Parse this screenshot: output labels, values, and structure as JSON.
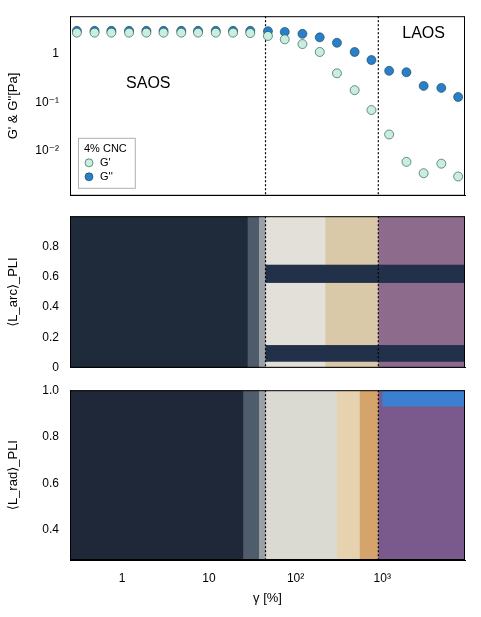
{
  "chart_data": [
    {
      "type": "scatter",
      "y_label": "G' & G''[Pa]",
      "log": true,
      "grid": false,
      "legend": "lower left",
      "legend_title": "4% CNC",
      "tick_labels": "y",
      "xlim": [
        0.25,
        9000
      ],
      "xticks": [
        1,
        10,
        {
          "value": 100,
          "label": "10²"
        },
        {
          "value": 1000,
          "label": "10³"
        }
      ],
      "ylim": [
        0.0012,
        6
      ],
      "yticks": [
        {
          "value": 0.01,
          "label": "10⁻²"
        },
        {
          "value": 0.1,
          "label": "10⁻¹"
        },
        1
      ],
      "x": [
        0.3,
        0.48,
        0.75,
        1.2,
        1.9,
        3,
        4.8,
        7.5,
        12,
        19,
        30,
        48,
        75,
        120,
        190,
        300,
        480,
        750,
        1200,
        1900,
        3000,
        4800,
        7500
      ],
      "series": [
        {
          "name": "G'",
          "color": "#c9eedb",
          "marker": "circle",
          "values": [
            2.75,
            2.75,
            2.75,
            2.75,
            2.75,
            2.75,
            2.75,
            2.75,
            2.75,
            2.75,
            2.7,
            2.35,
            2.0,
            1.6,
            1.1,
            0.4,
            0.18,
            0.07,
            0.022,
            0.006,
            0.0035,
            0.0055,
            0.003
          ]
        },
        {
          "name": "G''",
          "color": "#2b7fca",
          "marker": "circle",
          "values": [
            3.0,
            3.0,
            3.0,
            3.0,
            3.0,
            3.0,
            3.0,
            3.0,
            3.0,
            3.0,
            3.0,
            2.95,
            2.85,
            2.6,
            2.2,
            1.7,
            1.1,
            0.75,
            0.45,
            0.42,
            0.22,
            0.2,
            0.13
          ]
        }
      ],
      "annotations": [
        {
          "text": "SAOS",
          "x": 2,
          "y": 0.25
        },
        {
          "text": "LAOS",
          "x": 3000,
          "y": 2.6
        }
      ],
      "vlines": [
        45,
        900
      ]
    },
    {
      "type": "image",
      "y_label": "⟨L_arc⟩_PLI",
      "log": "x",
      "grid": false,
      "tick_labels": "y",
      "xlim": [
        0.25,
        9000
      ],
      "xticks": [
        1,
        10,
        {
          "value": 100,
          "label": "10²"
        },
        {
          "value": 1000,
          "label": "10³"
        }
      ],
      "ylim": [
        0,
        1
      ],
      "yticks": [
        0,
        0.2,
        0.4,
        0.6,
        0.8
      ],
      "bands": [
        {
          "from": 0.25,
          "to": 28,
          "color": "#1f2a3a"
        },
        {
          "from": 28,
          "to": 38,
          "color": "#4d5b6b"
        },
        {
          "from": 38,
          "to": 45,
          "color": "#9aa1a6"
        },
        {
          "from": 45,
          "to": 220,
          "color": "#e2e0d8"
        },
        {
          "from": 220,
          "to": 900,
          "color": "#d9c9a9"
        },
        {
          "from": 900,
          "to": 9000,
          "color": "#8d6b8c"
        }
      ],
      "stripes": [
        {
          "from": 45,
          "to": 9000,
          "ymin": 0.04,
          "ymax": 0.15,
          "color": "#22304a"
        },
        {
          "from": 45,
          "to": 9000,
          "ymin": 0.56,
          "ymax": 0.68,
          "color": "#22304a"
        }
      ],
      "vlines": [
        45,
        900
      ]
    },
    {
      "type": "image",
      "x_label": "γ [%]",
      "y_label": "⟨L_rad⟩_PLI",
      "log": "x",
      "grid": false,
      "xlim": [
        0.25,
        9000
      ],
      "xticks": [
        1,
        10,
        {
          "value": 100,
          "label": "10²"
        },
        {
          "value": 1000,
          "label": "10³"
        }
      ],
      "ylim": [
        0.27,
        1
      ],
      "yticks": [
        0.4,
        0.6,
        0.8,
        {
          "value": 1,
          "label": "1.0"
        }
      ],
      "bands": [
        {
          "from": 0.25,
          "to": 25,
          "color": "#1e2838"
        },
        {
          "from": 25,
          "to": 38,
          "color": "#4e5c6c"
        },
        {
          "from": 38,
          "to": 45,
          "color": "#9aa0a4"
        },
        {
          "from": 45,
          "to": 300,
          "color": "#dadad2"
        },
        {
          "from": 300,
          "to": 550,
          "color": "#e6d2ae"
        },
        {
          "from": 550,
          "to": 900,
          "color": "#d4a46a"
        },
        {
          "from": 900,
          "to": 9000,
          "color": "#7a5a8c"
        }
      ],
      "stripes": [
        {
          "from": 1000,
          "to": 9000,
          "ymin": 0.93,
          "ymax": 1,
          "color": "#3a7fd0"
        }
      ],
      "vlines": [
        45,
        900
      ]
    }
  ]
}
